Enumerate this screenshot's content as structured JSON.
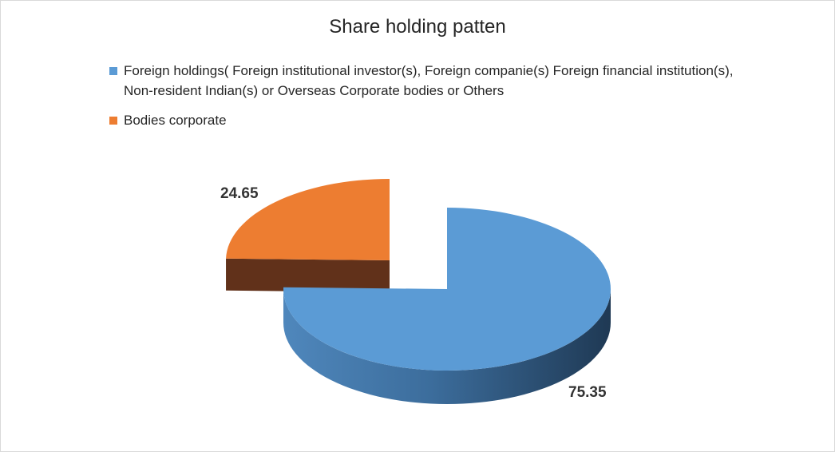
{
  "chart_data": {
    "type": "pie",
    "title": "Share holding patten",
    "legend_position": "top",
    "slices": [
      {
        "name": "Foreign holdings( Foreign institutional  investor(s), Foreign companie(s) Foreign financial institution(s), Non-resident Indian(s) or Overseas Corporate bodies or Others",
        "value": 75.35,
        "label": "75.35",
        "color": "#5b9bd5",
        "side_color": "#2e4b6b"
      },
      {
        "name": "Bodies corporate",
        "value": 24.65,
        "label": "24.65",
        "color": "#ed7d31",
        "side_color": "#61311a"
      }
    ]
  }
}
